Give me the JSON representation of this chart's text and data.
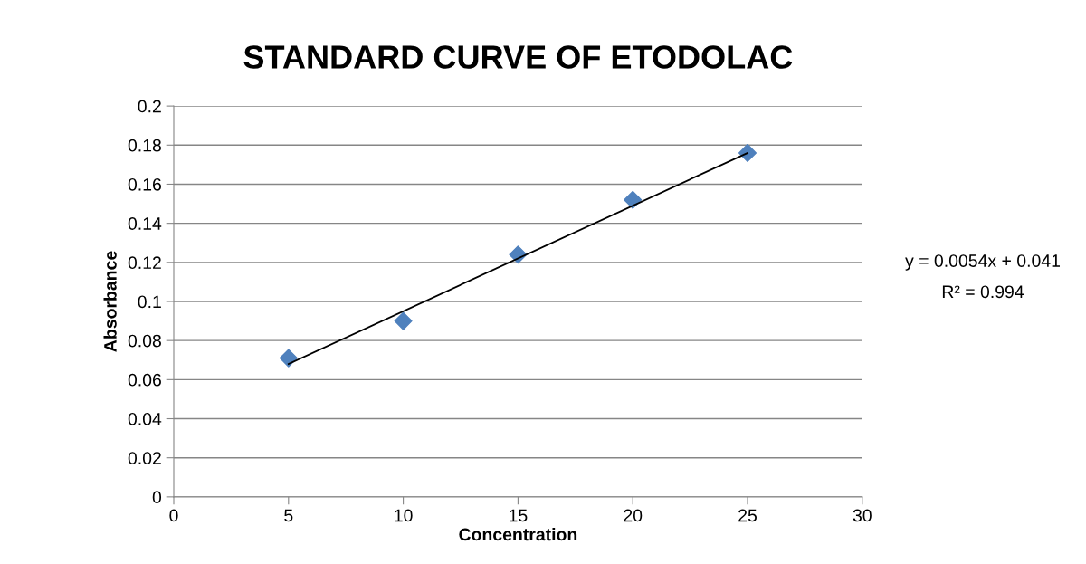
{
  "chart_data": {
    "type": "scatter",
    "title": "STANDARD CURVE OF ETODOLAC",
    "xlabel": "Concentration",
    "ylabel": "Absorbance",
    "x": [
      5,
      10,
      15,
      20,
      25
    ],
    "series": [
      {
        "color": "#4f81bd",
        "marker": "diamond",
        "values": [
          0.071,
          0.09,
          0.124,
          0.152,
          0.176
        ]
      },
      {
        "type": "line",
        "color": "#000000",
        "marker": "none",
        "line_style": "solid",
        "x": [
          5,
          25
        ],
        "values": [
          0.068,
          0.176
        ]
      }
    ],
    "xlim": [
      0,
      30
    ],
    "xticks": [
      0,
      5,
      10,
      15,
      20,
      25,
      30
    ],
    "ylim": [
      0,
      0.2
    ],
    "yticks": [
      0,
      0.02,
      0.04,
      0.06,
      0.08,
      0.1,
      0.12,
      0.14,
      0.16,
      0.18,
      0.2
    ],
    "grid": "y",
    "annotations": [
      "y = 0.0054x + 0.041",
      "R² = 0.994"
    ]
  }
}
